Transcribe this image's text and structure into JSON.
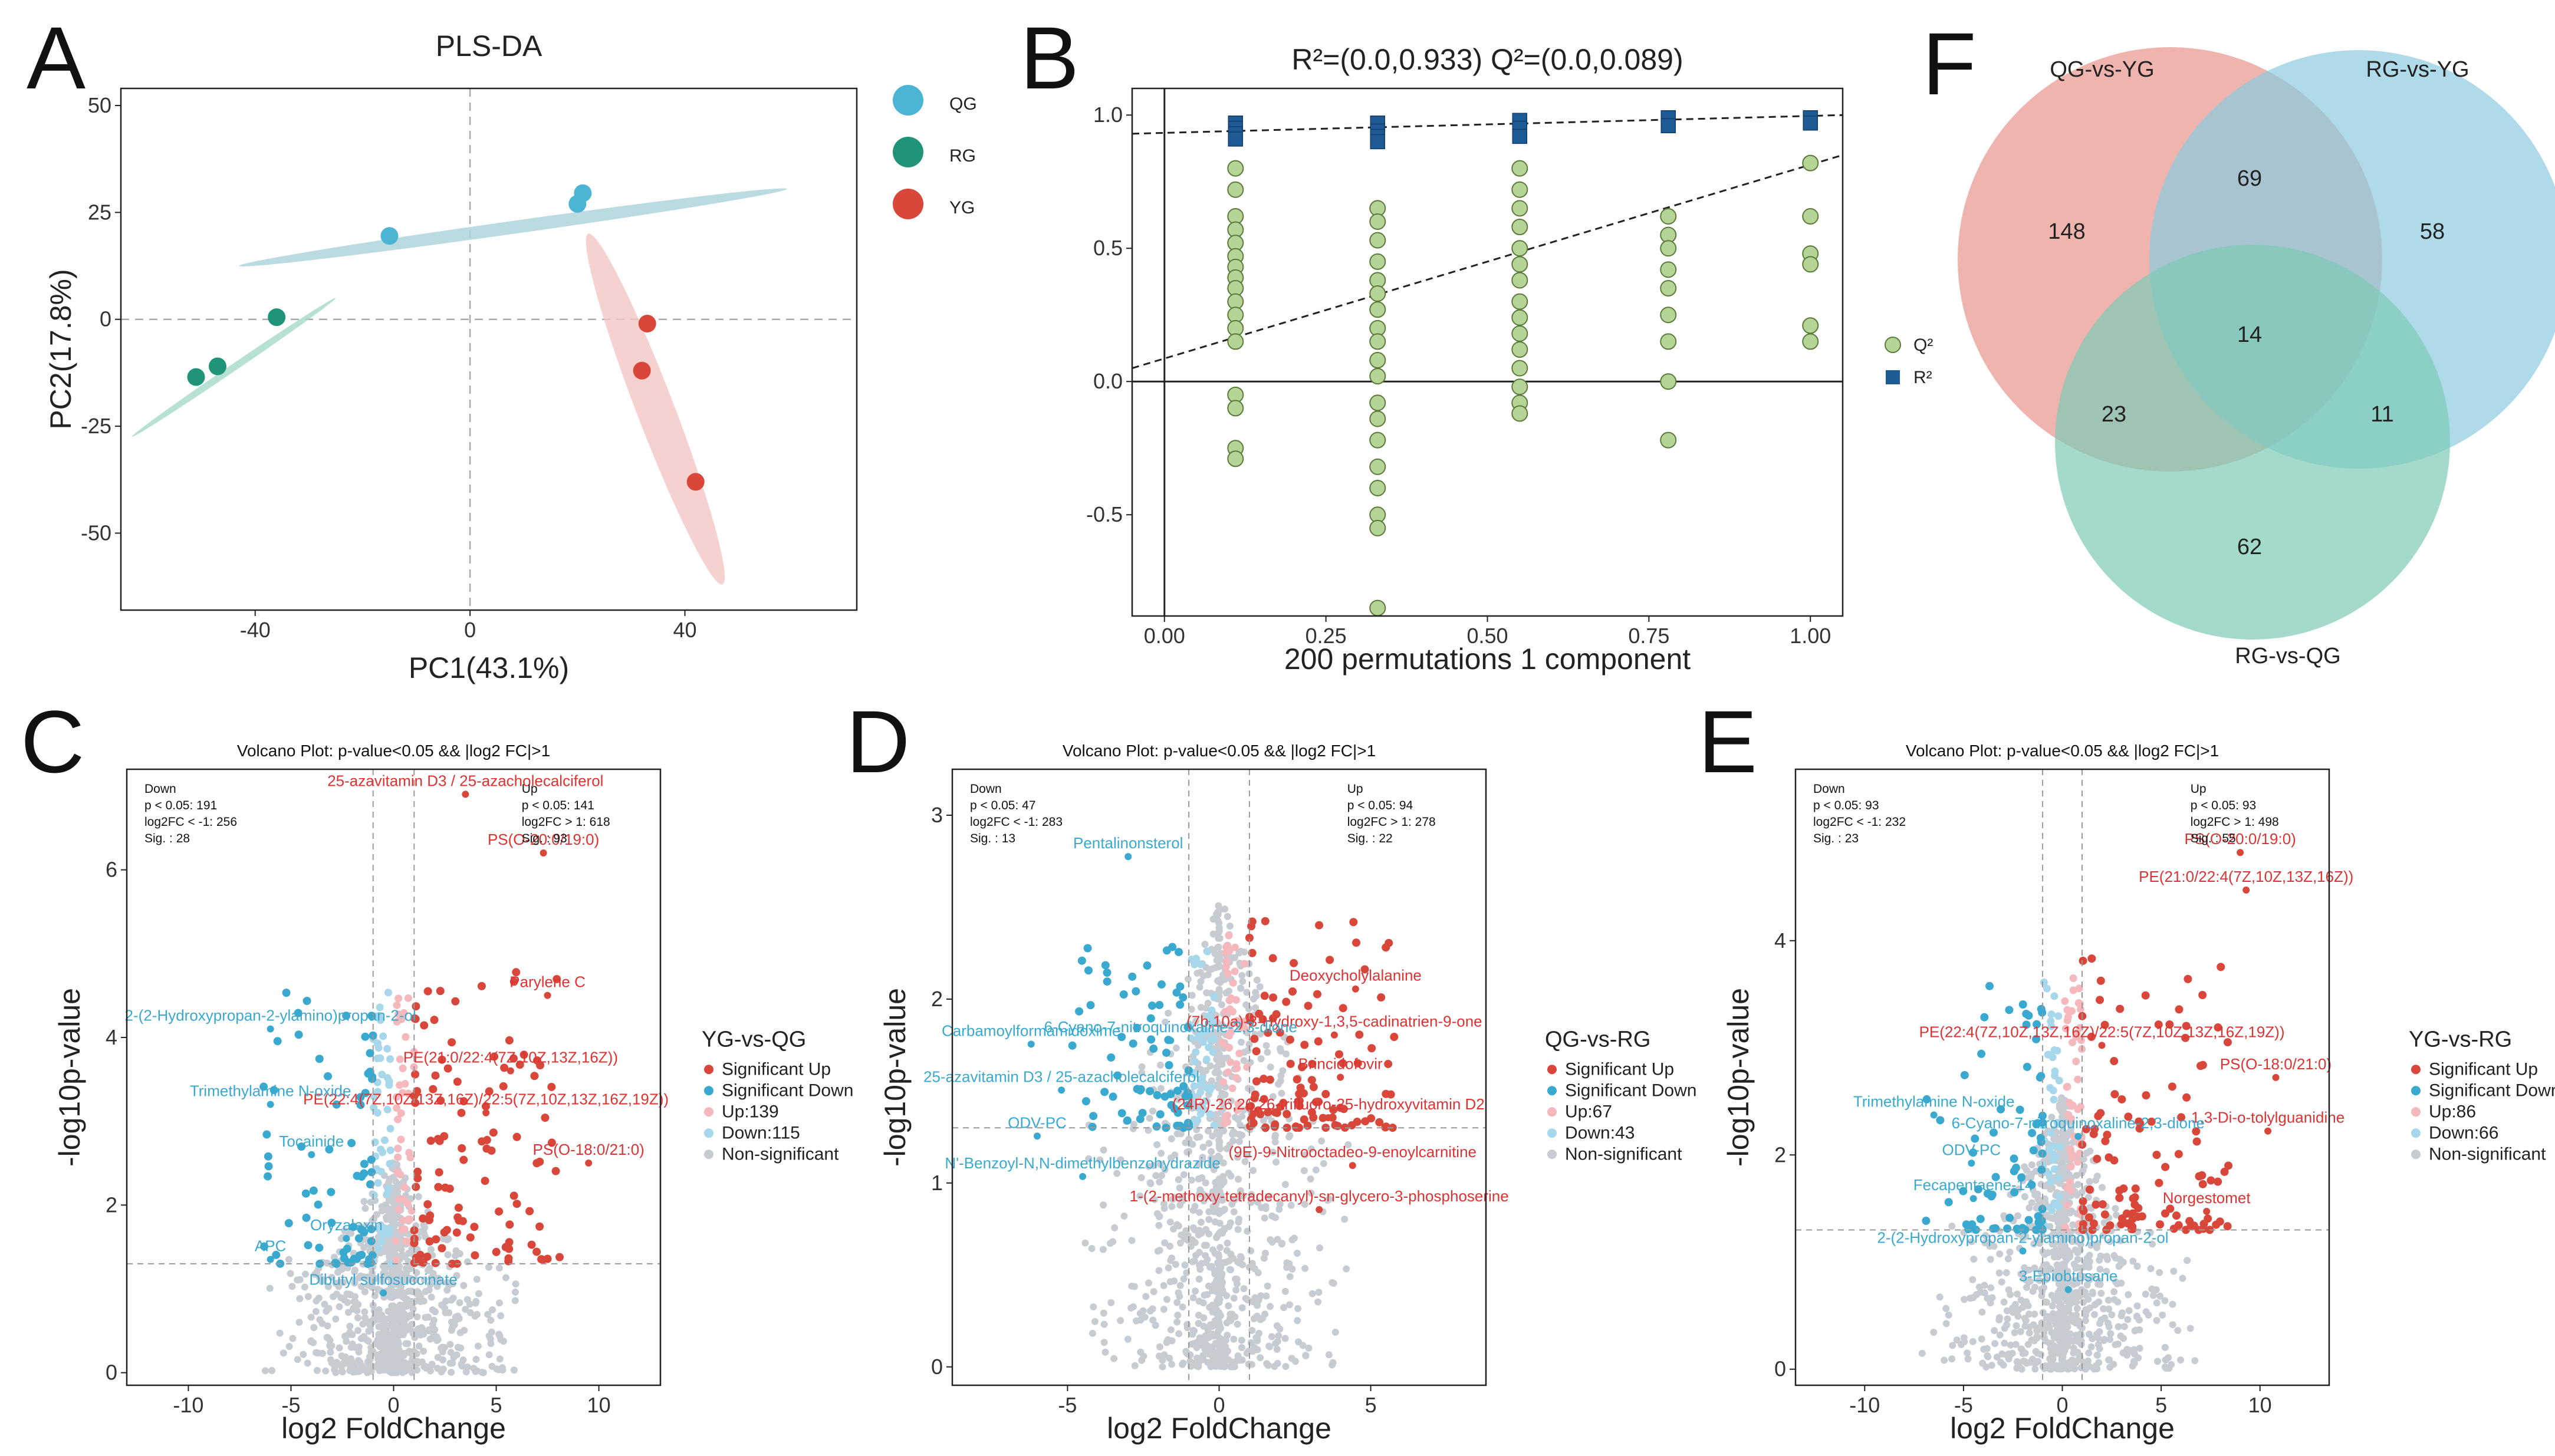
{
  "chart_data": [
    {
      "panel": "A",
      "type": "scatter",
      "title": "PLS-DA",
      "xlabel": "PC1(43.1%)",
      "ylabel": "PC2(17.8%)",
      "xlim": [
        -65,
        72
      ],
      "ylim": [
        -68,
        54
      ],
      "xticks": [
        -40,
        0,
        40
      ],
      "xtick_labels": [
        "-40",
        "0",
        "40"
      ],
      "yticks": [
        50,
        25,
        0,
        -25,
        -50
      ],
      "ytick_labels": [
        "50",
        "25",
        "0",
        "-25",
        "-50"
      ],
      "series": [
        {
          "name": "QG",
          "color": "#4db5d4",
          "points": [
            [
              -15,
              19.5
            ],
            [
              20,
              27
            ],
            [
              21,
              29.5
            ]
          ]
        },
        {
          "name": "RG",
          "color": "#1f9479",
          "points": [
            [
              -36,
              0.5
            ],
            [
              -47,
              -11
            ],
            [
              -51,
              -13.5
            ]
          ]
        },
        {
          "name": "YG",
          "color": "#d9473b",
          "points": [
            [
              33,
              -1
            ],
            [
              32,
              -12
            ],
            [
              42,
              -38
            ]
          ]
        }
      ]
    },
    {
      "panel": "B",
      "type": "scatter",
      "title": "R²=(0.0,0.933)   Q²=(0.0,0.089)",
      "xlabel": "200 permutations 1 component",
      "ylabel": "",
      "xlim": [
        -0.05,
        1.05
      ],
      "ylim": [
        -0.88,
        1.1
      ],
      "xticks": [
        0.0,
        0.25,
        0.5,
        0.75,
        1.0
      ],
      "xtick_labels": [
        "0.00",
        "0.25",
        "0.50",
        "0.75",
        "1.00"
      ],
      "yticks": [
        1.0,
        0.5,
        0.0,
        -0.5
      ],
      "ytick_labels": [
        "1.0",
        "0.5",
        "0.0",
        "-0.5"
      ],
      "legend": [
        "Q²",
        "R²"
      ],
      "r2_line": [
        [
          0.0,
          0.933
        ],
        [
          1.0,
          1.0
        ]
      ],
      "q2_line": [
        [
          -0.05,
          0.05
        ],
        [
          1.05,
          0.85
        ]
      ],
      "r2_points": [
        [
          0.11,
          0.97
        ],
        [
          0.11,
          0.95
        ],
        [
          0.11,
          0.93
        ],
        [
          0.11,
          0.91
        ],
        [
          0.33,
          0.97
        ],
        [
          0.33,
          0.94
        ],
        [
          0.33,
          0.92
        ],
        [
          0.33,
          0.9
        ],
        [
          0.55,
          0.98
        ],
        [
          0.55,
          0.95
        ],
        [
          0.55,
          0.92
        ],
        [
          0.78,
          0.99
        ],
        [
          0.78,
          0.96
        ],
        [
          1.0,
          0.99
        ],
        [
          1.0,
          0.97
        ]
      ],
      "q2_points": [
        [
          0.11,
          0.8
        ],
        [
          0.11,
          0.72
        ],
        [
          0.11,
          0.62
        ],
        [
          0.11,
          0.57
        ],
        [
          0.11,
          0.52
        ],
        [
          0.11,
          0.47
        ],
        [
          0.11,
          0.43
        ],
        [
          0.11,
          0.39
        ],
        [
          0.11,
          0.35
        ],
        [
          0.11,
          0.3
        ],
        [
          0.11,
          0.25
        ],
        [
          0.11,
          0.2
        ],
        [
          0.11,
          0.15
        ],
        [
          0.11,
          -0.05
        ],
        [
          0.11,
          -0.1
        ],
        [
          0.11,
          -0.25
        ],
        [
          0.11,
          -0.29
        ],
        [
          0.33,
          0.65
        ],
        [
          0.33,
          0.6
        ],
        [
          0.33,
          0.53
        ],
        [
          0.33,
          0.45
        ],
        [
          0.33,
          0.38
        ],
        [
          0.33,
          0.33
        ],
        [
          0.33,
          0.27
        ],
        [
          0.33,
          0.2
        ],
        [
          0.33,
          0.15
        ],
        [
          0.33,
          0.08
        ],
        [
          0.33,
          0.02
        ],
        [
          0.33,
          -0.08
        ],
        [
          0.33,
          -0.14
        ],
        [
          0.33,
          -0.22
        ],
        [
          0.33,
          -0.32
        ],
        [
          0.33,
          -0.4
        ],
        [
          0.33,
          -0.5
        ],
        [
          0.33,
          -0.55
        ],
        [
          0.33,
          -0.85
        ],
        [
          0.55,
          0.8
        ],
        [
          0.55,
          0.72
        ],
        [
          0.55,
          0.65
        ],
        [
          0.55,
          0.58
        ],
        [
          0.55,
          0.5
        ],
        [
          0.55,
          0.44
        ],
        [
          0.55,
          0.38
        ],
        [
          0.55,
          0.3
        ],
        [
          0.55,
          0.24
        ],
        [
          0.55,
          0.18
        ],
        [
          0.55,
          0.12
        ],
        [
          0.55,
          0.05
        ],
        [
          0.55,
          -0.02
        ],
        [
          0.55,
          -0.08
        ],
        [
          0.55,
          -0.12
        ],
        [
          0.78,
          0.62
        ],
        [
          0.78,
          0.55
        ],
        [
          0.78,
          0.5
        ],
        [
          0.78,
          0.42
        ],
        [
          0.78,
          0.35
        ],
        [
          0.78,
          0.25
        ],
        [
          0.78,
          0.15
        ],
        [
          0.78,
          0.0
        ],
        [
          0.78,
          -0.22
        ],
        [
          1.0,
          0.82
        ],
        [
          1.0,
          0.62
        ],
        [
          1.0,
          0.48
        ],
        [
          1.0,
          0.44
        ],
        [
          1.0,
          0.21
        ],
        [
          1.0,
          0.15
        ]
      ]
    },
    {
      "panel": "C",
      "type": "scatter",
      "title": "Volcano Plot: p-value<0.05 && |log2 FC|>1",
      "xlabel": "log2 FoldChange",
      "ylabel": "-log10p-value",
      "xlim": [
        -13,
        13
      ],
      "ylim": [
        -0.15,
        7.2
      ],
      "xticks": [
        -10,
        -5,
        0,
        5,
        10
      ],
      "xtick_labels": [
        "-10",
        "-5",
        "0",
        "5",
        "10"
      ],
      "yticks": [
        0,
        2,
        4,
        6
      ],
      "ytick_labels": [
        "0",
        "2",
        "4",
        "6"
      ],
      "vlines": [
        -1,
        1
      ],
      "hline": 1.3,
      "stats_down": [
        "Down",
        "p < 0.05: 191",
        "log2FC < -1: 256",
        "Sig. : 28"
      ],
      "stats_up": [
        "Up",
        "p < 0.05: 141",
        "log2FC > 1: 618",
        "Sig. : 93"
      ],
      "legend_title": "YG-vs-QG",
      "legend": [
        "Significant Up",
        "Significant Down",
        "Up:139",
        "Down:115",
        "Non-significant"
      ],
      "labels": [
        {
          "text": "25-azavitamin D3 / 25-azacholecalciferol",
          "x": 3.5,
          "y": 7.0,
          "side": "up"
        },
        {
          "text": "PS(O-20:0/19:0)",
          "x": 7.3,
          "y": 6.3,
          "side": "up"
        },
        {
          "text": "Parylene C",
          "x": 7.5,
          "y": 4.6,
          "side": "up"
        },
        {
          "text": "PE(21:0/22:4(7Z,10Z,13Z,16Z))",
          "x": 5.7,
          "y": 3.7,
          "side": "up"
        },
        {
          "text": "PE(22:4(7Z,10Z,13Z,16Z)/22:5(7Z,10Z,13Z,16Z,19Z))",
          "x": 4.5,
          "y": 3.2,
          "side": "up"
        },
        {
          "text": "PS(O-18:0/21:0)",
          "x": 9.5,
          "y": 2.6,
          "side": "up"
        },
        {
          "text": "2-(2-Hydroxypropan-2-ylamino)propan-2-ol",
          "x": -6.0,
          "y": 4.2,
          "side": "down"
        },
        {
          "text": "Trimethylamine N-oxide",
          "x": -6.0,
          "y": 3.3,
          "side": "down"
        },
        {
          "text": "Tocainide",
          "x": -4.0,
          "y": 2.7,
          "side": "down"
        },
        {
          "text": "Oryzalexin",
          "x": -2.3,
          "y": 1.7,
          "side": "down"
        },
        {
          "text": "APC",
          "x": -6.0,
          "y": 1.45,
          "side": "down"
        },
        {
          "text": "Dibutyl sulfosuccinate",
          "x": -0.5,
          "y": 1.05,
          "side": "down"
        }
      ]
    },
    {
      "panel": "D",
      "type": "scatter",
      "title": "Volcano Plot: p-value<0.05 && |log2 FC|>1",
      "xlabel": "log2 FoldChange",
      "ylabel": "-log10p-value",
      "xlim": [
        -8.8,
        8.8
      ],
      "ylim": [
        -0.1,
        3.25
      ],
      "xticks": [
        -5,
        0,
        5
      ],
      "xtick_labels": [
        "-5",
        "0",
        "5"
      ],
      "yticks": [
        0,
        1,
        2,
        3
      ],
      "ytick_labels": [
        "0",
        "1",
        "2",
        "3"
      ],
      "vlines": [
        -1,
        1
      ],
      "hline": 1.3,
      "stats_down": [
        "Down",
        "p < 0.05: 47",
        "log2FC < -1: 283",
        "Sig. : 13"
      ],
      "stats_up": [
        "Up",
        "p < 0.05: 94",
        "log2FC > 1: 278",
        "Sig. : 22"
      ],
      "legend_title": "QG-vs-RG",
      "legend": [
        "Significant Up",
        "Significant Down",
        "Up:67",
        "Down:43",
        "Non-significant"
      ],
      "labels": [
        {
          "text": "Deoxycholylalanine",
          "x": 4.5,
          "y": 2.1,
          "side": "up"
        },
        {
          "text": "(7b,10a)-3-Hydroxy-1,3,5-cadinatrien-9-one",
          "x": 3.8,
          "y": 1.85,
          "side": "up"
        },
        {
          "text": "Brincidofovir",
          "x": 4.0,
          "y": 1.62,
          "side": "up"
        },
        {
          "text": "(24R)-26,26,26-trifluoro-25-hydroxyvitamin D2",
          "x": 3.6,
          "y": 1.4,
          "side": "up"
        },
        {
          "text": "(9E)-9-Nitrooctadeo-9-enoylcarnitine",
          "x": 4.4,
          "y": 1.14,
          "side": "up"
        },
        {
          "text": "1-(2-methoxy-tetradecanyl)-sn-glycero-3-phosphoserine",
          "x": 3.3,
          "y": 0.9,
          "side": "up"
        },
        {
          "text": "Pentalinonsterol",
          "x": -3.0,
          "y": 2.82,
          "side": "down"
        },
        {
          "text": "6-Cyano-7-nitroquinoxaline-2,3-dione",
          "x": -1.6,
          "y": 1.82,
          "side": "down"
        },
        {
          "text": "Carbamoylformamidoxime",
          "x": -6.2,
          "y": 1.8,
          "side": "down"
        },
        {
          "text": "25-azavitamin D3 / 25-azacholecalciferol",
          "x": -5.2,
          "y": 1.55,
          "side": "down"
        },
        {
          "text": "ODV-PC",
          "x": -6.0,
          "y": 1.3,
          "side": "down"
        },
        {
          "text": "N'-Benzoyl-N,N-dimethylbenzohydrazide",
          "x": -4.5,
          "y": 1.08,
          "side": "down"
        }
      ]
    },
    {
      "panel": "E",
      "type": "scatter",
      "title": "Volcano Plot: p-value<0.05 && |log2 FC|>1",
      "xlabel": "log2 FoldChange",
      "ylabel": "-log10p-value",
      "xlim": [
        -13.5,
        13.5
      ],
      "ylim": [
        -0.15,
        5.6
      ],
      "xticks": [
        -10,
        -5,
        0,
        5,
        10
      ],
      "xtick_labels": [
        "-10",
        "-5",
        "0",
        "5",
        "10"
      ],
      "yticks": [
        0,
        2,
        4
      ],
      "ytick_labels": [
        "0",
        "2",
        "4"
      ],
      "vlines": [
        -1,
        1
      ],
      "hline": 1.3,
      "stats_down": [
        "Down",
        "p < 0.05: 93",
        "log2FC < -1: 232",
        "Sig. : 23"
      ],
      "stats_up": [
        "Up",
        "p < 0.05: 93",
        "log2FC > 1: 498",
        "Sig. : 55"
      ],
      "legend_title": "YG-vs-RG",
      "legend": [
        "Significant Up",
        "Significant Down",
        "Up:86",
        "Down:66",
        "Non-significant"
      ],
      "labels": [
        {
          "text": "PS(O-20:0/19:0)",
          "x": 9.0,
          "y": 4.9,
          "side": "up"
        },
        {
          "text": "PE(21:0/22:4(7Z,10Z,13Z,16Z))",
          "x": 9.3,
          "y": 4.55,
          "side": "up"
        },
        {
          "text": "PE(22:4(7Z,10Z,13Z,16Z)/22:5(7Z,10Z,13Z,16Z,19Z))",
          "x": 2.0,
          "y": 3.1,
          "side": "up"
        },
        {
          "text": "PS(O-18:0/21:0)",
          "x": 10.8,
          "y": 2.8,
          "side": "up"
        },
        {
          "text": "1,3-Di-o-tolylguanidine",
          "x": 10.4,
          "y": 2.3,
          "side": "up"
        },
        {
          "text": "Norgestomet",
          "x": 7.3,
          "y": 1.55,
          "side": "up"
        },
        {
          "text": "Trimethylamine N-oxide",
          "x": -6.5,
          "y": 2.45,
          "side": "down"
        },
        {
          "text": "6-Cyano-7-nitroquinoxaline-2,3-dione",
          "x": 0.8,
          "y": 2.25,
          "side": "down"
        },
        {
          "text": "ODV-PC",
          "x": -4.6,
          "y": 2.0,
          "side": "down"
        },
        {
          "text": "Fecapentaene-14",
          "x": -4.5,
          "y": 1.67,
          "side": "down"
        },
        {
          "text": "2-(2-Hydroxypropan-2-ylamino)propan-2-ol",
          "x": -2.0,
          "y": 1.18,
          "side": "down"
        },
        {
          "text": "3-Epiobtusane",
          "x": 0.3,
          "y": 0.82,
          "side": "down"
        }
      ]
    },
    {
      "panel": "F",
      "type": "venn",
      "sets": [
        {
          "name": "QG-vs-YG",
          "color": "#e8948b"
        },
        {
          "name": "RG-vs-YG",
          "color": "#8ccbe0"
        },
        {
          "name": "RG-vs-QG",
          "color": "#7ecab5"
        }
      ],
      "regions": [
        {
          "sets": [
            "QG-vs-YG"
          ],
          "value": 148
        },
        {
          "sets": [
            "RG-vs-YG"
          ],
          "value": 58
        },
        {
          "sets": [
            "RG-vs-QG"
          ],
          "value": 62
        },
        {
          "sets": [
            "QG-vs-YG",
            "RG-vs-YG"
          ],
          "value": 69
        },
        {
          "sets": [
            "QG-vs-YG",
            "RG-vs-QG"
          ],
          "value": 23
        },
        {
          "sets": [
            "RG-vs-YG",
            "RG-vs-QG"
          ],
          "value": 11
        },
        {
          "sets": [
            "QG-vs-YG",
            "RG-vs-YG",
            "RG-vs-QG"
          ],
          "value": 14
        }
      ]
    }
  ],
  "panel_letters": [
    "A",
    "B",
    "C",
    "D",
    "E",
    "F"
  ],
  "colors": {
    "up": "#d9473b",
    "down": "#3aa9d0",
    "up_light": "#f4b8bd",
    "down_light": "#a7d7ea",
    "nonsig": "#c7ccd3"
  }
}
